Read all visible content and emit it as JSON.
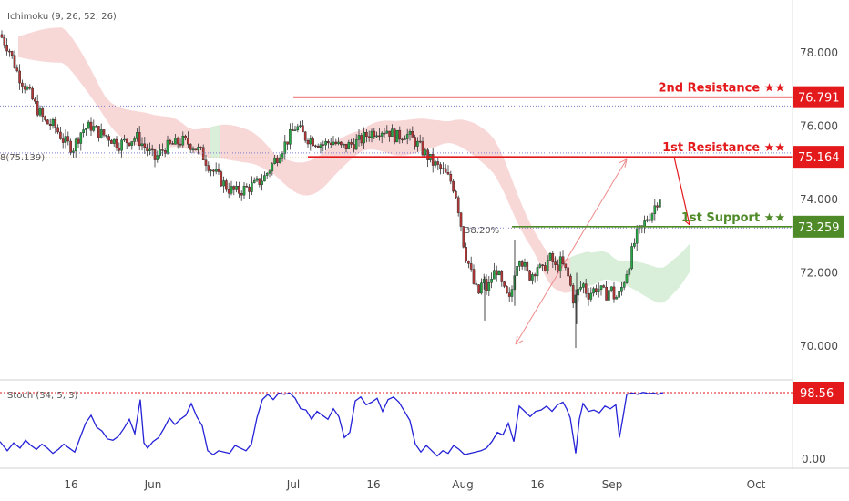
{
  "colors": {
    "resistance": "#e3191c",
    "support": "#4e8a28",
    "bull": "#26a644",
    "bear": "#b33636",
    "stoch": "#2422d6",
    "cloud_red": "#f6c9c9",
    "cloud_green": "#cdeacd",
    "fib_dot": "#7d7dcc",
    "projection": "#f08a8a"
  },
  "chart_data": [
    {
      "type": "candlestick",
      "indicator_label": "Ichimoku (9, 26, 52, 26)",
      "ylim": [
        69.5,
        79.3
      ],
      "y_ticks": [
        "78.000",
        "76.000",
        "74.000",
        "72.000",
        "70.000"
      ],
      "x_ticks": [
        "16",
        "Jun",
        "Jul",
        "16",
        "Aug",
        "16",
        "Sep",
        "Oct"
      ],
      "close_path": [
        [
          0,
          78.5
        ],
        [
          10,
          78.1
        ],
        [
          20,
          77.4
        ],
        [
          30,
          77.0
        ],
        [
          40,
          76.5
        ],
        [
          50,
          76.1
        ],
        [
          60,
          76.0
        ],
        [
          70,
          75.6
        ],
        [
          80,
          75.4
        ],
        [
          90,
          75.9
        ],
        [
          100,
          76.0
        ],
        [
          110,
          75.8
        ],
        [
          120,
          75.7
        ],
        [
          130,
          75.5
        ],
        [
          140,
          75.6
        ],
        [
          150,
          75.7
        ],
        [
          160,
          75.4
        ],
        [
          170,
          75.1
        ],
        [
          180,
          75.4
        ],
        [
          190,
          75.5
        ],
        [
          200,
          75.6
        ],
        [
          210,
          75.5
        ],
        [
          220,
          75.3
        ],
        [
          230,
          74.9
        ],
        [
          240,
          74.6
        ],
        [
          250,
          74.3
        ],
        [
          260,
          74.2
        ],
        [
          270,
          74.3
        ],
        [
          280,
          74.4
        ],
        [
          290,
          74.6
        ],
        [
          300,
          75.0
        ],
        [
          310,
          75.4
        ],
        [
          320,
          75.8
        ],
        [
          325,
          76.0
        ],
        [
          335,
          75.7
        ],
        [
          345,
          75.6
        ],
        [
          355,
          75.5
        ],
        [
          365,
          75.6
        ],
        [
          375,
          75.4
        ],
        [
          385,
          75.5
        ],
        [
          395,
          75.6
        ],
        [
          405,
          75.8
        ],
        [
          415,
          75.9
        ],
        [
          425,
          75.9
        ],
        [
          435,
          75.7
        ],
        [
          445,
          75.8
        ],
        [
          455,
          75.6
        ],
        [
          465,
          75.3
        ],
        [
          475,
          75.0
        ],
        [
          485,
          74.8
        ],
        [
          495,
          74.5
        ],
        [
          500,
          74.2
        ],
        [
          505,
          73.5
        ],
        [
          510,
          72.6
        ],
        [
          515,
          72.2
        ],
        [
          520,
          71.7
        ],
        [
          525,
          71.4
        ],
        [
          530,
          71.8
        ],
        [
          535,
          71.5
        ],
        [
          540,
          71.9
        ],
        [
          545,
          72.1
        ],
        [
          550,
          71.7
        ],
        [
          555,
          71.4
        ],
        [
          560,
          71.2
        ],
        [
          565,
          72.1
        ],
        [
          570,
          72.5
        ],
        [
          575,
          72.2
        ],
        [
          580,
          71.9
        ],
        [
          585,
          72.0
        ],
        [
          590,
          72.2
        ],
        [
          595,
          72.0
        ],
        [
          600,
          72.3
        ],
        [
          605,
          72.4
        ],
        [
          610,
          72.1
        ],
        [
          615,
          72.3
        ],
        [
          620,
          72.1
        ],
        [
          625,
          71.8
        ],
        [
          630,
          71.2
        ],
        [
          635,
          71.5
        ],
        [
          640,
          71.7
        ],
        [
          645,
          71.4
        ],
        [
          650,
          71.5
        ],
        [
          655,
          71.6
        ],
        [
          660,
          71.5
        ],
        [
          665,
          71.4
        ],
        [
          670,
          71.6
        ],
        [
          675,
          71.3
        ],
        [
          680,
          71.4
        ],
        [
          685,
          71.8
        ],
        [
          690,
          72.2
        ],
        [
          695,
          72.7
        ],
        [
          700,
          73.1
        ],
        [
          705,
          73.2
        ],
        [
          710,
          73.5
        ],
        [
          715,
          73.6
        ],
        [
          720,
          73.9
        ],
        [
          725,
          74.1
        ]
      ],
      "spikes": [
        {
          "x": 565,
          "high": 72.9,
          "low": 71.1
        },
        {
          "x": 633,
          "high": 72.0,
          "low": 70.6
        },
        {
          "x": 632,
          "high": 71.4,
          "low": 69.95
        },
        {
          "x": 532,
          "high": 71.9,
          "low": 70.7
        }
      ],
      "levels": [
        {
          "name": "resistance-2",
          "label": "2nd Resistance ★★",
          "value": "76.791",
          "price": 76.791,
          "start_x": 322,
          "color": "resistance"
        },
        {
          "name": "resistance-1",
          "label": "1st Resistance ★★",
          "value": "75.164",
          "price": 75.164,
          "start_x": 338,
          "color": "resistance"
        },
        {
          "name": "support-1",
          "label": "1st Support ★★",
          "value": "73.259",
          "price": 73.259,
          "start_x": 562,
          "color": "support"
        }
      ],
      "fib_level": {
        "label": "38.20%",
        "price": 73.225
      },
      "fib_left_label": "8(75.139)",
      "fib_left_price": 75.139,
      "dotted_ref_price": 76.55
    },
    {
      "type": "line",
      "indicator_label": "Stoch (34, 5, 3)",
      "ylim": [
        0,
        100
      ],
      "y_ticks": [
        "0.00"
      ],
      "current_value": "98.56",
      "current": 98.56,
      "values": [
        [
          0,
          24
        ],
        [
          8,
          10
        ],
        [
          15,
          22
        ],
        [
          22,
          14
        ],
        [
          28,
          26
        ],
        [
          34,
          18
        ],
        [
          40,
          12
        ],
        [
          46,
          20
        ],
        [
          52,
          14
        ],
        [
          58,
          6
        ],
        [
          64,
          12
        ],
        [
          70,
          20
        ],
        [
          76,
          14
        ],
        [
          82,
          8
        ],
        [
          88,
          30
        ],
        [
          94,
          52
        ],
        [
          100,
          64
        ],
        [
          106,
          46
        ],
        [
          112,
          40
        ],
        [
          118,
          28
        ],
        [
          124,
          26
        ],
        [
          130,
          32
        ],
        [
          136,
          44
        ],
        [
          142,
          58
        ],
        [
          148,
          36
        ],
        [
          154,
          88
        ],
        [
          158,
          22
        ],
        [
          162,
          14
        ],
        [
          168,
          24
        ],
        [
          174,
          30
        ],
        [
          180,
          44
        ],
        [
          186,
          60
        ],
        [
          192,
          50
        ],
        [
          198,
          58
        ],
        [
          204,
          64
        ],
        [
          210,
          82
        ],
        [
          216,
          62
        ],
        [
          222,
          48
        ],
        [
          228,
          10
        ],
        [
          234,
          4
        ],
        [
          240,
          10
        ],
        [
          246,
          8
        ],
        [
          252,
          6
        ],
        [
          258,
          18
        ],
        [
          264,
          14
        ],
        [
          270,
          10
        ],
        [
          276,
          20
        ],
        [
          282,
          60
        ],
        [
          288,
          88
        ],
        [
          294,
          96
        ],
        [
          300,
          88
        ],
        [
          306,
          98
        ],
        [
          312,
          96
        ],
        [
          318,
          98
        ],
        [
          324,
          90
        ],
        [
          330,
          74
        ],
        [
          336,
          72
        ],
        [
          342,
          58
        ],
        [
          348,
          70
        ],
        [
          354,
          64
        ],
        [
          360,
          58
        ],
        [
          366,
          74
        ],
        [
          372,
          62
        ],
        [
          378,
          30
        ],
        [
          384,
          38
        ],
        [
          390,
          86
        ],
        [
          396,
          92
        ],
        [
          402,
          80
        ],
        [
          408,
          84
        ],
        [
          414,
          90
        ],
        [
          420,
          70
        ],
        [
          426,
          88
        ],
        [
          432,
          92
        ],
        [
          438,
          84
        ],
        [
          444,
          70
        ],
        [
          450,
          56
        ],
        [
          456,
          20
        ],
        [
          462,
          8
        ],
        [
          468,
          18
        ],
        [
          474,
          10
        ],
        [
          480,
          2
        ],
        [
          486,
          10
        ],
        [
          492,
          6
        ],
        [
          498,
          18
        ],
        [
          504,
          12
        ],
        [
          510,
          4
        ],
        [
          516,
          6
        ],
        [
          522,
          8
        ],
        [
          528,
          10
        ],
        [
          534,
          14
        ],
        [
          540,
          24
        ],
        [
          546,
          38
        ],
        [
          552,
          34
        ],
        [
          558,
          52
        ],
        [
          564,
          24
        ],
        [
          570,
          78
        ],
        [
          576,
          70
        ],
        [
          582,
          62
        ],
        [
          588,
          70
        ],
        [
          594,
          72
        ],
        [
          600,
          78
        ],
        [
          606,
          70
        ],
        [
          612,
          80
        ],
        [
          618,
          84
        ],
        [
          622,
          74
        ],
        [
          626,
          60
        ],
        [
          632,
          6
        ],
        [
          636,
          58
        ],
        [
          640,
          82
        ],
        [
          646,
          70
        ],
        [
          652,
          72
        ],
        [
          658,
          68
        ],
        [
          664,
          78
        ],
        [
          670,
          74
        ],
        [
          676,
          80
        ],
        [
          680,
          30
        ],
        [
          684,
          62
        ],
        [
          688,
          96
        ],
        [
          694,
          98
        ],
        [
          700,
          96
        ],
        [
          706,
          99
        ],
        [
          712,
          97
        ],
        [
          718,
          98
        ],
        [
          722,
          96
        ],
        [
          726,
          98
        ],
        [
          728,
          98.5
        ]
      ]
    }
  ],
  "x_axis": {
    "labels": [
      "16",
      "Jun",
      "Jul",
      "16",
      "Aug",
      "16",
      "Sep",
      "Oct"
    ]
  }
}
